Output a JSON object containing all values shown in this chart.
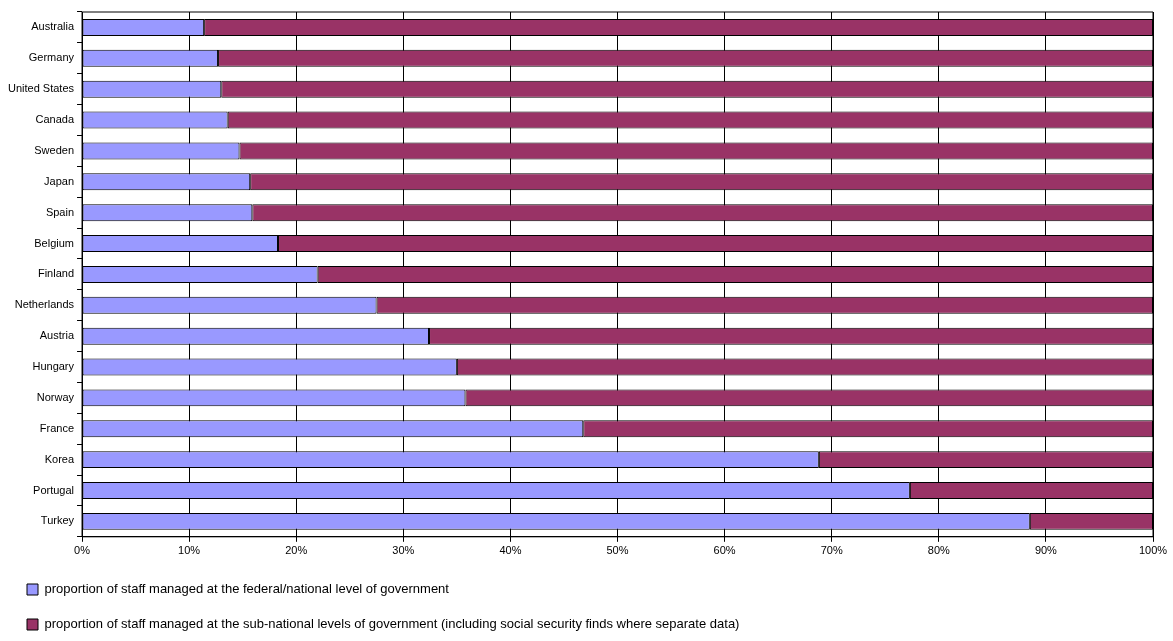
{
  "chart_data": {
    "type": "bar",
    "orientation": "horizontal",
    "stacked": true,
    "categories": [
      "Australia",
      "Germany",
      "United States",
      "Canada",
      "Sweden",
      "Japan",
      "Spain",
      "Belgium",
      "Finland",
      "Netherlands",
      "Austria",
      "Hungary",
      "Norway",
      "France",
      "Korea",
      "Portugal",
      "Turkey"
    ],
    "series": [
      {
        "name": "proportion of staff managed at the federal/national level of government",
        "color": "#9999ff",
        "values": [
          11.4,
          12.7,
          13.0,
          13.6,
          14.7,
          15.7,
          15.9,
          18.3,
          22.0,
          27.5,
          32.4,
          35.0,
          35.8,
          46.8,
          68.8,
          77.3,
          88.5
        ]
      },
      {
        "name": "proportion of staff managed at the sub-national levels of government (including social security finds where separate data)",
        "color": "#993366",
        "values": [
          88.6,
          87.3,
          87.0,
          86.4,
          85.3,
          84.3,
          84.1,
          81.7,
          78.0,
          72.5,
          67.6,
          65.0,
          64.2,
          53.2,
          31.2,
          22.7,
          11.5
        ]
      }
    ],
    "xlim": [
      0,
      100
    ],
    "xticks": [
      {
        "value": 0,
        "label": "0%"
      },
      {
        "value": 10,
        "label": "10%"
      },
      {
        "value": 20,
        "label": "20%"
      },
      {
        "value": 30,
        "label": "30%"
      },
      {
        "value": 40,
        "label": "40%"
      },
      {
        "value": 50,
        "label": "50%"
      },
      {
        "value": 60,
        "label": "60%"
      },
      {
        "value": 70,
        "label": "70%"
      },
      {
        "value": 80,
        "label": "80%"
      },
      {
        "value": 90,
        "label": "90%"
      },
      {
        "value": 100,
        "label": "100%"
      }
    ],
    "grid": "x",
    "legend": "bottom left"
  }
}
